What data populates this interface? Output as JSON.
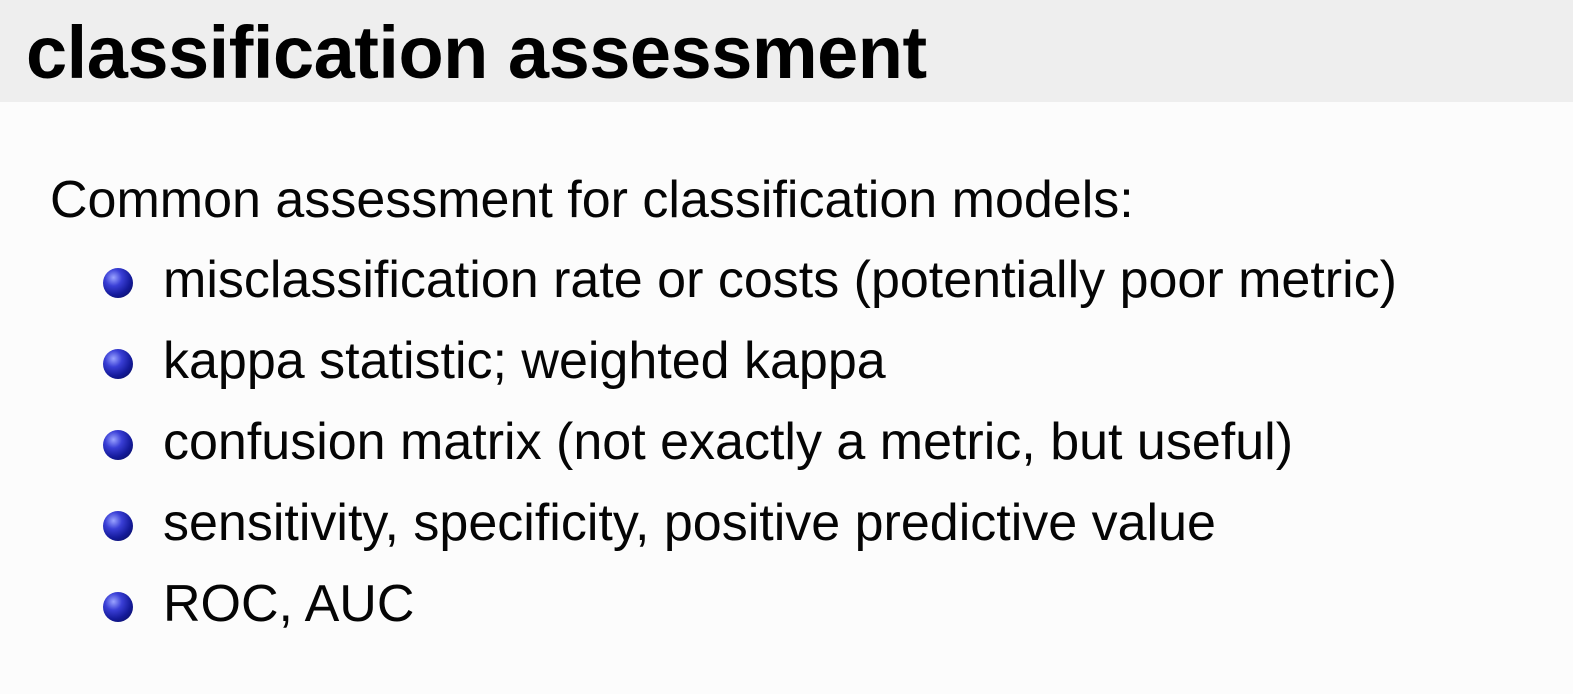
{
  "slide": {
    "title": "classification assessment",
    "intro": "Common assessment for classification models:",
    "bullets": [
      "misclassification rate or costs (potentially poor metric)",
      "kappa statistic; weighted kappa",
      "confusion matrix (not exactly a metric, but useful)",
      "sensitivity, specificity, positive predictive value",
      "ROC, AUC"
    ],
    "bullet_icon": "sphere-bullet-icon",
    "colors": {
      "title_bar": "#eeeeee",
      "background": "#fcfcfc",
      "bullet": "#1a1f9e",
      "text": "#000000"
    }
  }
}
